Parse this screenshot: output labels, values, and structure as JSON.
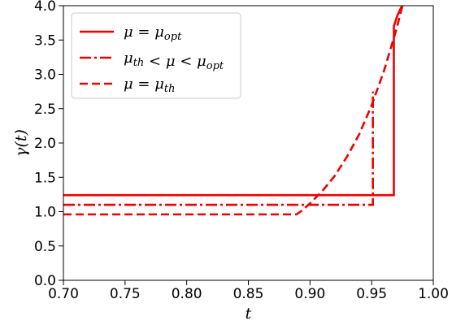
{
  "chart_data": {
    "type": "line",
    "title": "",
    "xlabel": "t",
    "ylabel": "γ(t)",
    "xlim": [
      0.7,
      1.0
    ],
    "ylim": [
      0.0,
      4.0
    ],
    "xticks": [
      "0.70",
      "0.75",
      "0.80",
      "0.85",
      "0.90",
      "0.95",
      "1.00"
    ],
    "yticks": [
      "0.0",
      "0.5",
      "1.0",
      "1.5",
      "2.0",
      "2.5",
      "3.0",
      "3.5",
      "4.0"
    ],
    "grid": false,
    "legend_position": "top-left",
    "series": [
      {
        "name": "μ = μopt",
        "legend_main": "μ = μ",
        "legend_sub": "opt",
        "color": "#ee0000",
        "style": "solid",
        "x": [
          0.7,
          0.968,
          0.968,
          0.9707,
          0.9733,
          0.9747
        ],
        "y": [
          1.24,
          1.24,
          3.7,
          3.85,
          3.95,
          4.0
        ]
      },
      {
        "name": "μth < μ < μopt",
        "legend_main": "μ",
        "legend_sub": "th",
        "legend_mid": " < μ < μ",
        "legend_sub2": "opt",
        "color": "#ee0000",
        "style": "dashdot",
        "x": [
          0.7,
          0.951,
          0.951
        ],
        "y": [
          1.1,
          1.1,
          2.75
        ]
      },
      {
        "name": "μ = μth",
        "legend_main": "μ = μ",
        "legend_sub": "th",
        "color": "#ee0000",
        "style": "dashed",
        "x": [
          0.7,
          0.889,
          0.893,
          0.9,
          0.91,
          0.92,
          0.93,
          0.94,
          0.95,
          0.96,
          0.97,
          0.975
        ],
        "y": [
          0.96,
          0.96,
          1.01,
          1.12,
          1.3,
          1.52,
          1.8,
          2.13,
          2.55,
          3.05,
          3.65,
          4.0
        ]
      }
    ]
  }
}
